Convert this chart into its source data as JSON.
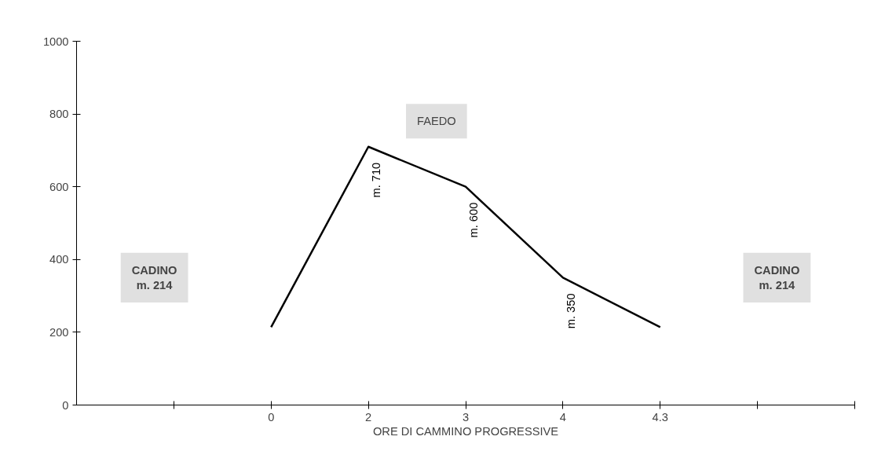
{
  "chart_data": {
    "type": "line",
    "xlabel": "ORE DI CAMMINO PROGRESSIVE",
    "categories": [
      null,
      null,
      "0",
      "2",
      "3",
      "4",
      "4.3",
      null,
      null
    ],
    "values": [
      null,
      null,
      214,
      710,
      600,
      350,
      214,
      null,
      null
    ],
    "value_labels": [
      null,
      null,
      null,
      "m. 710",
      "m. 600",
      "m. 350",
      null,
      null,
      null
    ],
    "color": "#000000",
    "ylim": [
      0,
      1000
    ],
    "yticks": [
      0,
      200,
      400,
      600,
      800,
      1000
    ],
    "grid": false,
    "marker": "none",
    "line_style": "solid",
    "annotations": [
      "CADINO\nm. 214",
      "CADINO\nm. 214",
      "FAEDO"
    ]
  }
}
